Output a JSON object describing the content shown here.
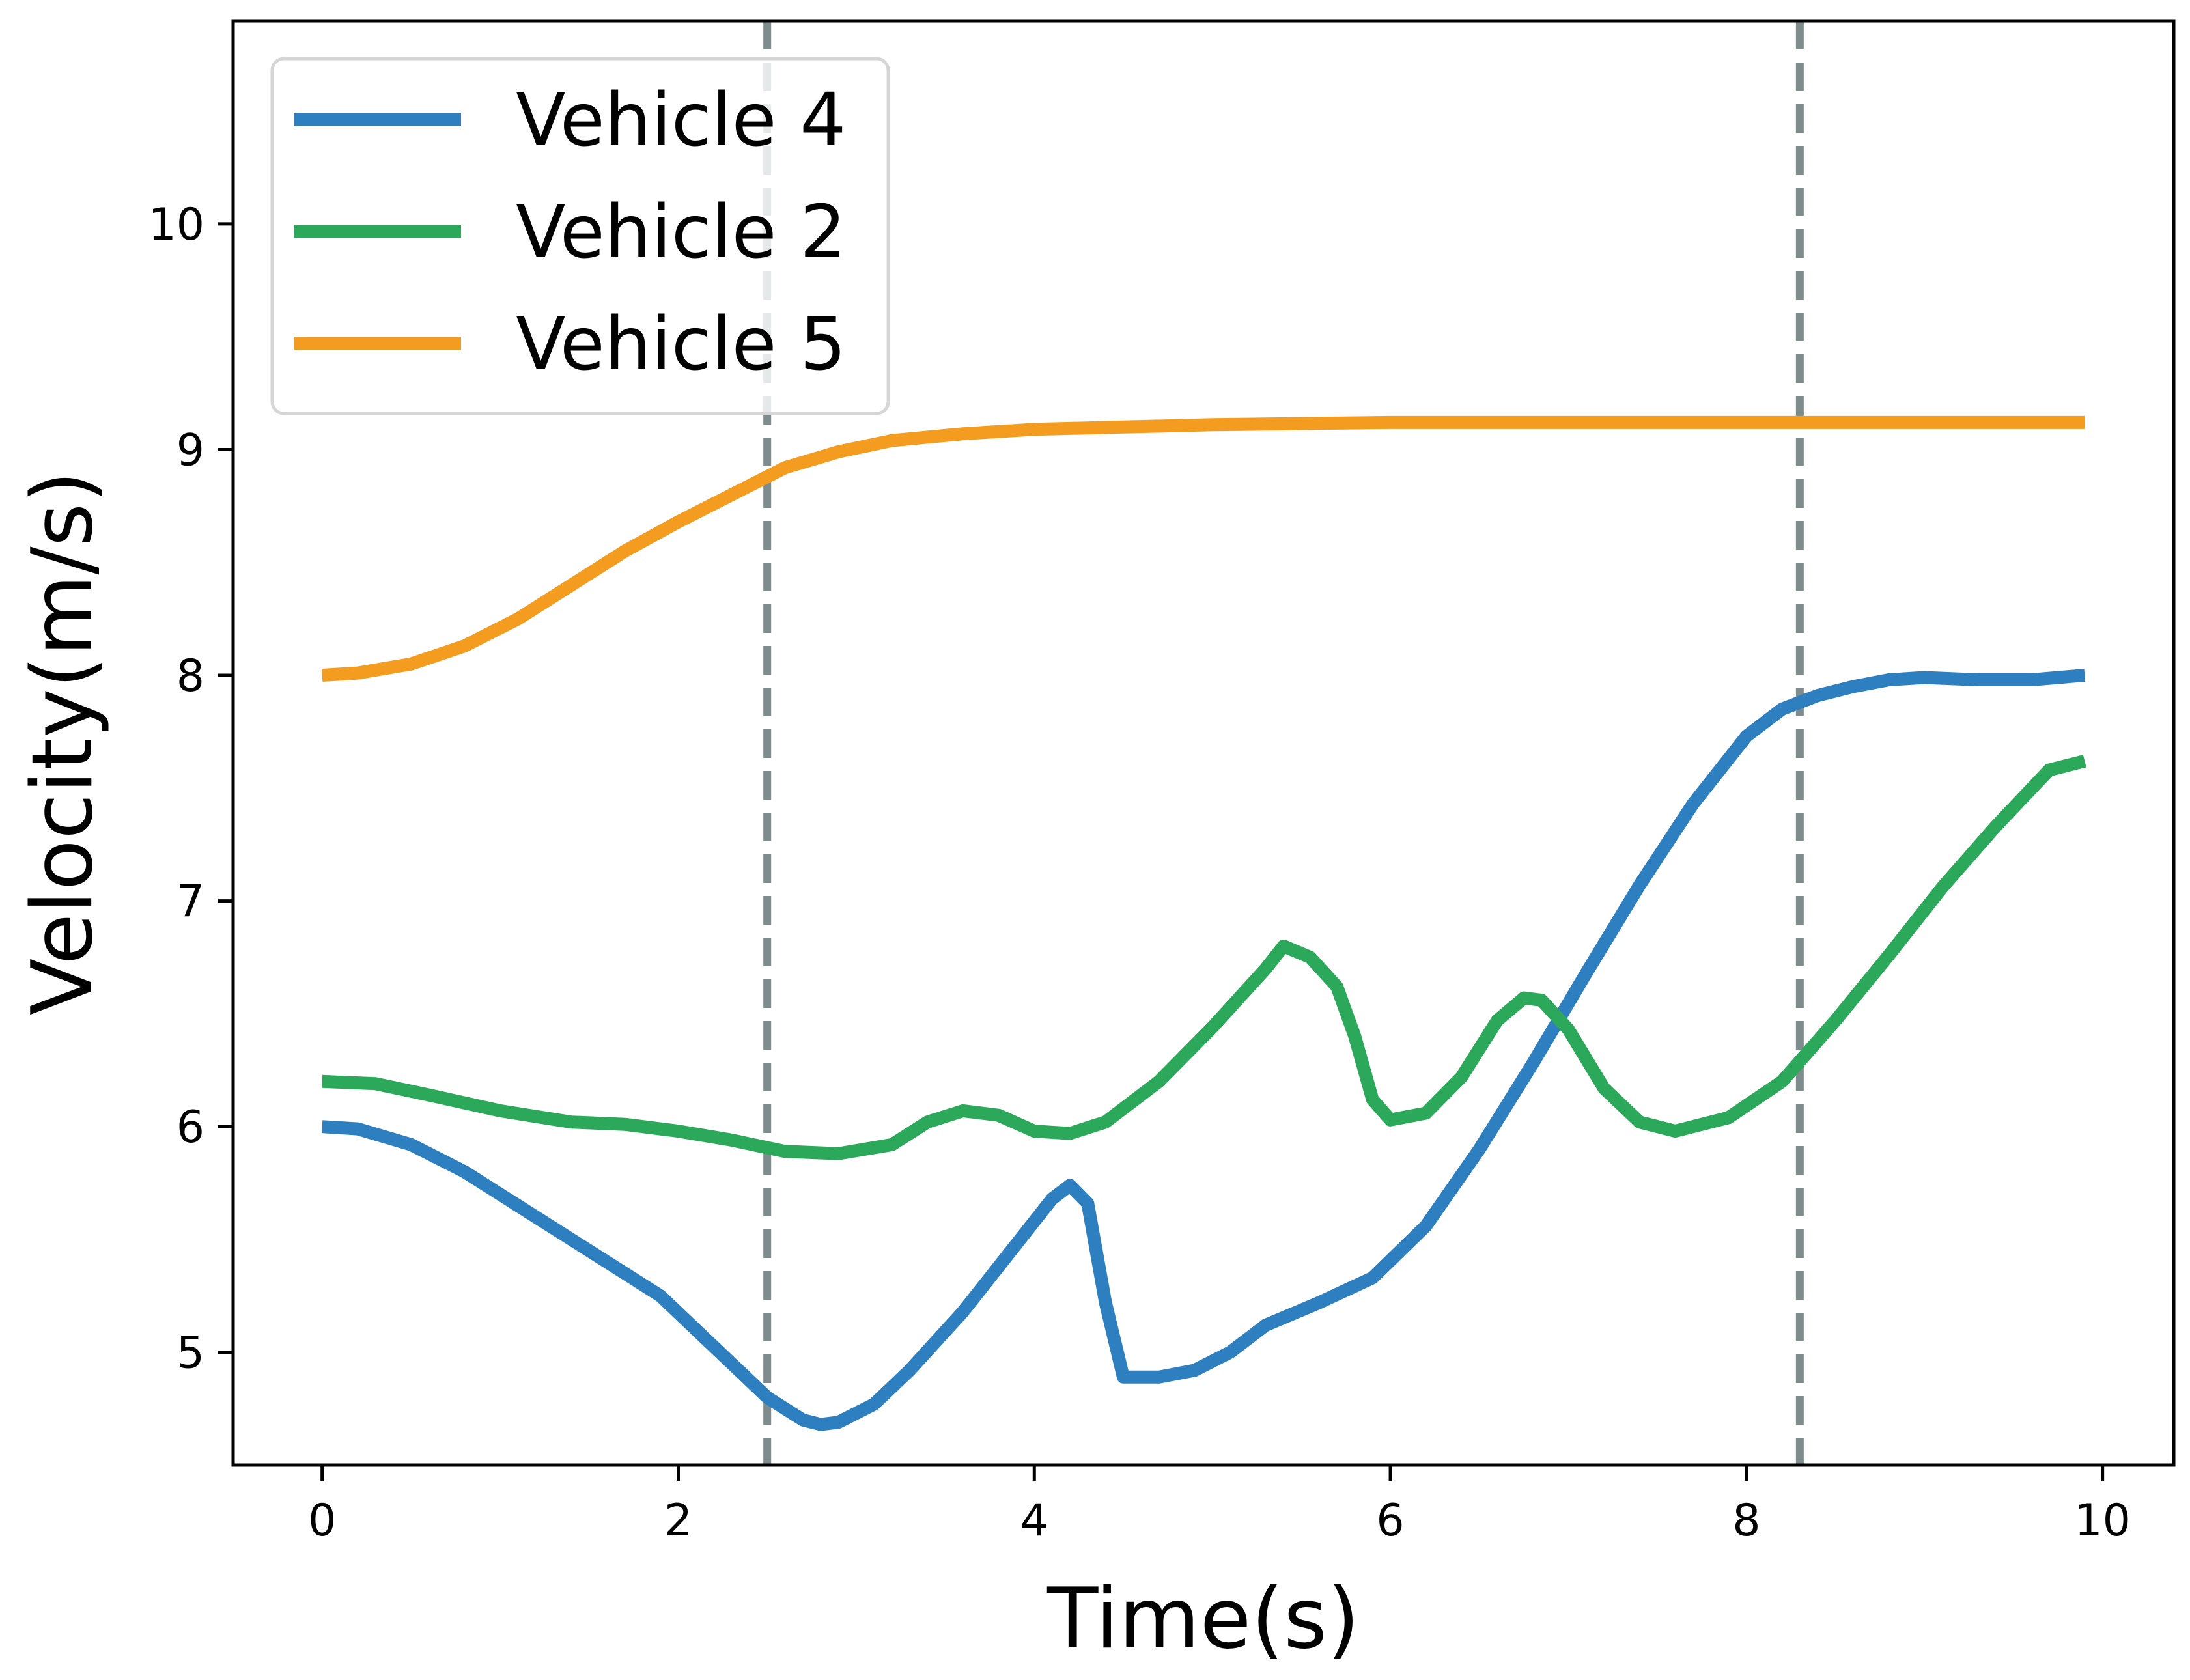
{
  "chart_data": {
    "type": "line",
    "xlabel": "Time(s)",
    "ylabel": "Velocity(m/s)",
    "xlim": [
      -0.5,
      10.4
    ],
    "ylim": [
      4.5,
      10.9
    ],
    "xticks": [
      0,
      2,
      4,
      6,
      8,
      10
    ],
    "yticks": [
      5,
      6,
      7,
      8,
      9,
      10
    ],
    "grid": false,
    "legend_position": "top-left",
    "vertical_lines": [
      {
        "x": 2.5,
        "style": "dashed",
        "color": "#7f8c8d"
      },
      {
        "x": 8.3,
        "style": "dashed",
        "color": "#7f8c8d"
      }
    ],
    "series": [
      {
        "name": "Vehicle 4",
        "color": "#2e7fbf",
        "x": [
          0,
          0.2,
          0.5,
          0.8,
          1.1,
          1.5,
          1.9,
          2.1,
          2.3,
          2.5,
          2.7,
          2.8,
          2.9,
          3.1,
          3.3,
          3.6,
          3.9,
          4.1,
          4.2,
          4.3,
          4.4,
          4.5,
          4.7,
          4.9,
          5.1,
          5.3,
          5.6,
          5.9,
          6.2,
          6.5,
          6.8,
          7.1,
          7.4,
          7.7,
          8.0,
          8.2,
          8.4,
          8.6,
          8.8,
          9.0,
          9.3,
          9.6,
          9.9
        ],
        "y": [
          6.0,
          5.99,
          5.92,
          5.8,
          5.65,
          5.45,
          5.25,
          5.1,
          4.95,
          4.8,
          4.7,
          4.68,
          4.69,
          4.77,
          4.92,
          5.18,
          5.48,
          5.68,
          5.74,
          5.66,
          5.22,
          4.89,
          4.89,
          4.92,
          5.0,
          5.12,
          5.22,
          5.33,
          5.56,
          5.9,
          6.28,
          6.68,
          7.07,
          7.43,
          7.73,
          7.85,
          7.91,
          7.95,
          7.98,
          7.99,
          7.98,
          7.98,
          8.0
        ]
      },
      {
        "name": "Vehicle 2",
        "color": "#2ca85a",
        "x": [
          0,
          0.3,
          0.6,
          1.0,
          1.4,
          1.7,
          2.0,
          2.3,
          2.6,
          2.9,
          3.2,
          3.4,
          3.6,
          3.8,
          4.0,
          4.2,
          4.4,
          4.7,
          5.0,
          5.3,
          5.4,
          5.55,
          5.7,
          5.8,
          5.9,
          6.0,
          6.2,
          6.4,
          6.6,
          6.75,
          6.85,
          7.0,
          7.2,
          7.4,
          7.6,
          7.9,
          8.2,
          8.5,
          8.8,
          9.1,
          9.4,
          9.7,
          9.9
        ],
        "y": [
          6.2,
          6.19,
          6.14,
          6.07,
          6.02,
          6.01,
          5.98,
          5.94,
          5.89,
          5.88,
          5.92,
          6.02,
          6.07,
          6.05,
          5.98,
          5.97,
          6.02,
          6.2,
          6.44,
          6.7,
          6.8,
          6.75,
          6.62,
          6.4,
          6.12,
          6.03,
          6.06,
          6.22,
          6.47,
          6.57,
          6.56,
          6.43,
          6.17,
          6.02,
          5.98,
          6.04,
          6.2,
          6.47,
          6.76,
          7.06,
          7.33,
          7.58,
          7.62
        ]
      },
      {
        "name": "Vehicle 5",
        "color": "#f39c1f",
        "x": [
          0,
          0.2,
          0.5,
          0.8,
          1.1,
          1.4,
          1.7,
          2.0,
          2.3,
          2.6,
          2.9,
          3.2,
          3.6,
          4.0,
          4.5,
          5.0,
          6.0,
          7.0,
          8.0,
          9.0,
          9.9
        ],
        "y": [
          8.0,
          8.01,
          8.05,
          8.13,
          8.25,
          8.4,
          8.55,
          8.68,
          8.8,
          8.92,
          8.99,
          9.04,
          9.07,
          9.09,
          9.1,
          9.11,
          9.12,
          9.12,
          9.12,
          9.12,
          9.12
        ]
      }
    ]
  }
}
